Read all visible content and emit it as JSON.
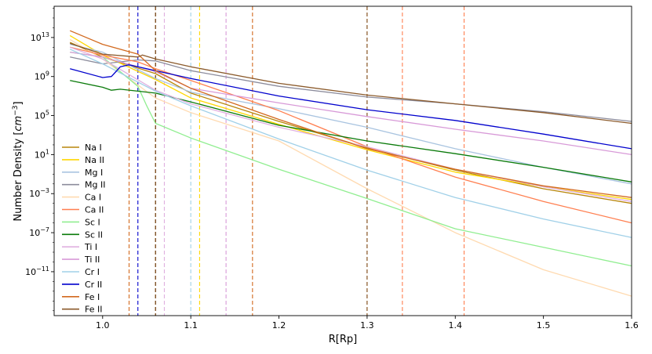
{
  "chart_data": {
    "type": "line",
    "xlabel": "R[Rp]",
    "ylabel_main": "Number Density [",
    "ylabel_unit": "cm",
    "ylabel_exp": "−3",
    "ylabel_close": "]",
    "xlim": [
      0.945,
      1.6
    ],
    "ylim_log10": [
      -15.5,
      16.2
    ],
    "log_y": true,
    "x_ticks": [
      {
        "value": 1.0,
        "label": "1.0"
      },
      {
        "value": 1.1,
        "label": "1.1"
      },
      {
        "value": 1.2,
        "label": "1.2"
      },
      {
        "value": 1.3,
        "label": "1.3"
      },
      {
        "value": 1.4,
        "label": "1.4"
      },
      {
        "value": 1.5,
        "label": "1.5"
      },
      {
        "value": 1.6,
        "label": "1.6"
      }
    ],
    "y_ticks": [
      {
        "exp": 13,
        "base": "10",
        "sup": "13"
      },
      {
        "exp": 9,
        "base": "10",
        "sup": "9"
      },
      {
        "exp": 5,
        "base": "10",
        "sup": "5"
      },
      {
        "exp": 1,
        "base": "10",
        "sup": "1"
      },
      {
        "exp": -3,
        "base": "10",
        "sup": "−3"
      },
      {
        "exp": -7,
        "base": "10",
        "sup": "−7"
      },
      {
        "exp": -11,
        "base": "10",
        "sup": "−11"
      }
    ],
    "legend_position": "left",
    "series": [
      {
        "name": "Na I",
        "color": "#b8860b",
        "vline": 1.06,
        "points": [
          [
            0.963,
            12.5
          ],
          [
            1.0,
            11.0
          ],
          [
            1.06,
            9.3
          ],
          [
            1.1,
            7.3
          ],
          [
            1.2,
            4.4
          ],
          [
            1.3,
            1.7
          ],
          [
            1.4,
            -0.6
          ],
          [
            1.5,
            -2.5
          ],
          [
            1.6,
            -4.0
          ]
        ]
      },
      {
        "name": "Na II",
        "color": "#ffd700",
        "vline": 1.11,
        "points": [
          [
            0.963,
            13.2
          ],
          [
            1.0,
            11.2
          ],
          [
            1.06,
            8.7
          ],
          [
            1.1,
            6.8
          ],
          [
            1.2,
            4.1
          ],
          [
            1.3,
            1.5
          ],
          [
            1.4,
            -0.8
          ],
          [
            1.5,
            -2.3
          ],
          [
            1.6,
            -3.6
          ]
        ]
      },
      {
        "name": "Mg I",
        "color": "#a9c4e0",
        "vline": null,
        "points": [
          [
            0.963,
            12.3
          ],
          [
            1.0,
            11.5
          ],
          [
            1.06,
            8.8
          ],
          [
            1.1,
            7.4
          ],
          [
            1.2,
            5.7
          ],
          [
            1.3,
            3.8
          ],
          [
            1.4,
            1.6
          ],
          [
            1.5,
            -0.3
          ],
          [
            1.6,
            -2.0
          ]
        ]
      },
      {
        "name": "Mg II",
        "color": "#8c8c9c",
        "vline": null,
        "points": [
          [
            0.963,
            11.0
          ],
          [
            1.0,
            10.3
          ],
          [
            1.04,
            10.7
          ],
          [
            1.06,
            10.6
          ],
          [
            1.1,
            9.6
          ],
          [
            1.2,
            8.0
          ],
          [
            1.3,
            6.9
          ],
          [
            1.4,
            6.2
          ],
          [
            1.5,
            5.4
          ],
          [
            1.6,
            4.4
          ]
        ]
      },
      {
        "name": "Ca I",
        "color": "#ffdab0",
        "vline": null,
        "points": [
          [
            0.963,
            12.8
          ],
          [
            1.0,
            10.8
          ],
          [
            1.06,
            6.8
          ],
          [
            1.1,
            5.3
          ],
          [
            1.2,
            2.4
          ],
          [
            1.3,
            -2.5
          ],
          [
            1.4,
            -7.0
          ],
          [
            1.5,
            -10.8
          ],
          [
            1.6,
            -13.5
          ]
        ]
      },
      {
        "name": "Ca II",
        "color": "#ff7f50",
        "vline": 1.34,
        "points": [
          [
            0.963,
            12.0
          ],
          [
            1.0,
            11.2
          ],
          [
            1.04,
            10.5
          ],
          [
            1.06,
            9.8
          ],
          [
            1.1,
            8.6
          ],
          [
            1.2,
            5.5
          ],
          [
            1.3,
            1.8
          ],
          [
            1.4,
            -1.3
          ],
          [
            1.5,
            -3.8
          ],
          [
            1.6,
            -6.0
          ]
        ]
      },
      {
        "name": "Sc I",
        "color": "#90ee90",
        "vline": null,
        "points": [
          [
            0.963,
            11.5
          ],
          [
            1.0,
            11.0
          ],
          [
            1.04,
            8.0
          ],
          [
            1.05,
            6.0
          ],
          [
            1.06,
            4.2
          ],
          [
            1.1,
            2.7
          ],
          [
            1.2,
            -0.5
          ],
          [
            1.3,
            -3.5
          ],
          [
            1.4,
            -6.6
          ],
          [
            1.5,
            -8.5
          ],
          [
            1.6,
            -10.4
          ]
        ]
      },
      {
        "name": "Sc II",
        "color": "#0a7a0a",
        "vline": null,
        "points": [
          [
            0.963,
            8.6
          ],
          [
            1.0,
            7.9
          ],
          [
            1.01,
            7.6
          ],
          [
            1.02,
            7.7
          ],
          [
            1.04,
            7.5
          ],
          [
            1.06,
            7.3
          ],
          [
            1.1,
            6.4
          ],
          [
            1.2,
            4.0
          ],
          [
            1.3,
            2.4
          ],
          [
            1.4,
            1.1
          ],
          [
            1.5,
            -0.3
          ],
          [
            1.6,
            -1.8
          ]
        ]
      },
      {
        "name": "Ti I",
        "color": "#e0b0e0",
        "vline": 1.07,
        "points": [
          [
            0.963,
            12.0
          ],
          [
            1.0,
            10.8
          ],
          [
            1.06,
            7.6
          ],
          [
            1.1,
            6.2
          ],
          [
            1.2,
            3.8
          ],
          [
            1.3,
            1.8
          ],
          [
            1.4,
            -0.5
          ],
          [
            1.5,
            -2.3
          ],
          [
            1.6,
            -3.8
          ]
        ]
      },
      {
        "name": "Ti II",
        "color": "#d89ad8",
        "vline": 1.14,
        "points": [
          [
            0.963,
            11.5
          ],
          [
            1.0,
            11.0
          ],
          [
            1.06,
            9.5
          ],
          [
            1.1,
            7.8
          ],
          [
            1.2,
            6.3
          ],
          [
            1.3,
            4.9
          ],
          [
            1.4,
            3.6
          ],
          [
            1.5,
            2.4
          ],
          [
            1.6,
            1.0
          ]
        ]
      },
      {
        "name": "Cr I",
        "color": "#a0d0e8",
        "vline": 1.1,
        "points": [
          [
            0.963,
            11.8
          ],
          [
            1.0,
            10.3
          ],
          [
            1.06,
            7.5
          ],
          [
            1.1,
            6.0
          ],
          [
            1.2,
            2.6
          ],
          [
            1.3,
            -0.6
          ],
          [
            1.4,
            -3.4
          ],
          [
            1.5,
            -5.6
          ],
          [
            1.6,
            -7.5
          ]
        ]
      },
      {
        "name": "Cr II",
        "color": "#0000cd",
        "vline": 1.04,
        "points": [
          [
            0.963,
            9.8
          ],
          [
            1.0,
            8.9
          ],
          [
            1.01,
            9.0
          ],
          [
            1.015,
            9.5
          ],
          [
            1.02,
            10.0
          ],
          [
            1.03,
            10.2
          ],
          [
            1.045,
            9.9
          ],
          [
            1.06,
            9.6
          ],
          [
            1.1,
            8.8
          ],
          [
            1.2,
            7.0
          ],
          [
            1.3,
            5.6
          ],
          [
            1.4,
            4.5
          ],
          [
            1.5,
            3.1
          ],
          [
            1.6,
            1.6
          ]
        ]
      },
      {
        "name": "Fe I",
        "color": "#d2691e",
        "vline": 1.03,
        "points": [
          [
            0.963,
            13.7
          ],
          [
            1.0,
            12.3
          ],
          [
            1.04,
            11.3
          ],
          [
            1.06,
            9.6
          ],
          [
            1.1,
            7.8
          ],
          [
            1.2,
            4.6
          ],
          [
            1.3,
            1.6
          ],
          [
            1.4,
            -0.5
          ],
          [
            1.5,
            -2.2
          ],
          [
            1.6,
            -3.4
          ]
        ]
      },
      {
        "name": "Fe II",
        "color": "#8b5a2b",
        "vline": 1.3,
        "points": [
          [
            0.963,
            12.4
          ],
          [
            1.0,
            11.3
          ],
          [
            1.04,
            11.0
          ],
          [
            1.045,
            11.2
          ],
          [
            1.06,
            10.8
          ],
          [
            1.1,
            10.0
          ],
          [
            1.2,
            8.3
          ],
          [
            1.3,
            7.1
          ],
          [
            1.4,
            6.2
          ],
          [
            1.5,
            5.3
          ],
          [
            1.6,
            4.2
          ]
        ]
      }
    ],
    "extra_vlines": [
      {
        "x": 1.17,
        "color": "#d2691e"
      },
      {
        "x": 1.41,
        "color": "#ff7f50"
      },
      {
        "x": 1.3,
        "color": "#8b5a2b"
      },
      {
        "x": 1.06,
        "color": "#6b3a1a"
      }
    ]
  }
}
